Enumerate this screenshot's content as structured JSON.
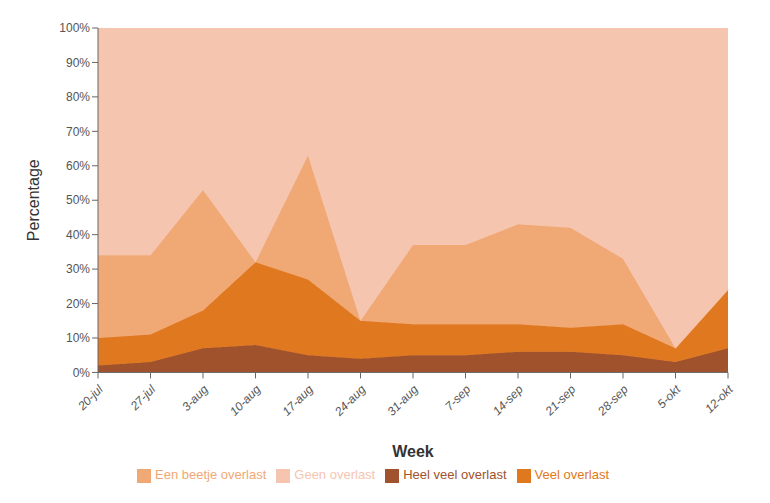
{
  "chart_data": {
    "type": "area",
    "stacked": true,
    "grid": false,
    "legend": "bottom",
    "xlabel": "Week",
    "ylabel": "Percentage",
    "categories": [
      "20-jul",
      "27-jul",
      "3-aug",
      "10-aug",
      "17-aug",
      "24-aug",
      "31-aug",
      "7-sep",
      "14-sep",
      "21-sep",
      "28-sep",
      "5-okt",
      "12-okt"
    ],
    "series": [
      {
        "name": "Heel veel overlast",
        "color": "#A0522D",
        "values": [
          2,
          3,
          7,
          8,
          5,
          4,
          5,
          5,
          6,
          6,
          5,
          3,
          7
        ]
      },
      {
        "name": "Veel overlast",
        "color": "#E07820",
        "values": [
          8,
          8,
          11,
          24,
          22,
          11,
          9,
          9,
          8,
          7,
          9,
          4,
          17
        ]
      },
      {
        "name": "Een beetje overlast",
        "color": "#F0A875",
        "values": [
          24,
          23,
          35,
          0,
          36,
          0,
          23,
          23,
          29,
          29,
          19,
          0,
          0
        ]
      },
      {
        "name": "Geen overlast",
        "color": "#F5C5B0",
        "values": [
          66,
          66,
          47,
          68,
          37,
          85,
          63,
          63,
          57,
          58,
          67,
          93,
          76
        ]
      }
    ],
    "ylim": [
      0,
      100
    ],
    "yticks": [
      {
        "value": 0,
        "label": "0%"
      },
      {
        "value": 10,
        "label": "10%"
      },
      {
        "value": 20,
        "label": "20%"
      },
      {
        "value": 30,
        "label": "30%"
      },
      {
        "value": 40,
        "label": "40%"
      },
      {
        "value": 50,
        "label": "50%"
      },
      {
        "value": 60,
        "label": "60%"
      },
      {
        "value": 70,
        "label": "70%"
      },
      {
        "value": 80,
        "label": "80%"
      },
      {
        "value": 90,
        "label": "90%"
      },
      {
        "value": 100,
        "label": "100%"
      }
    ]
  }
}
